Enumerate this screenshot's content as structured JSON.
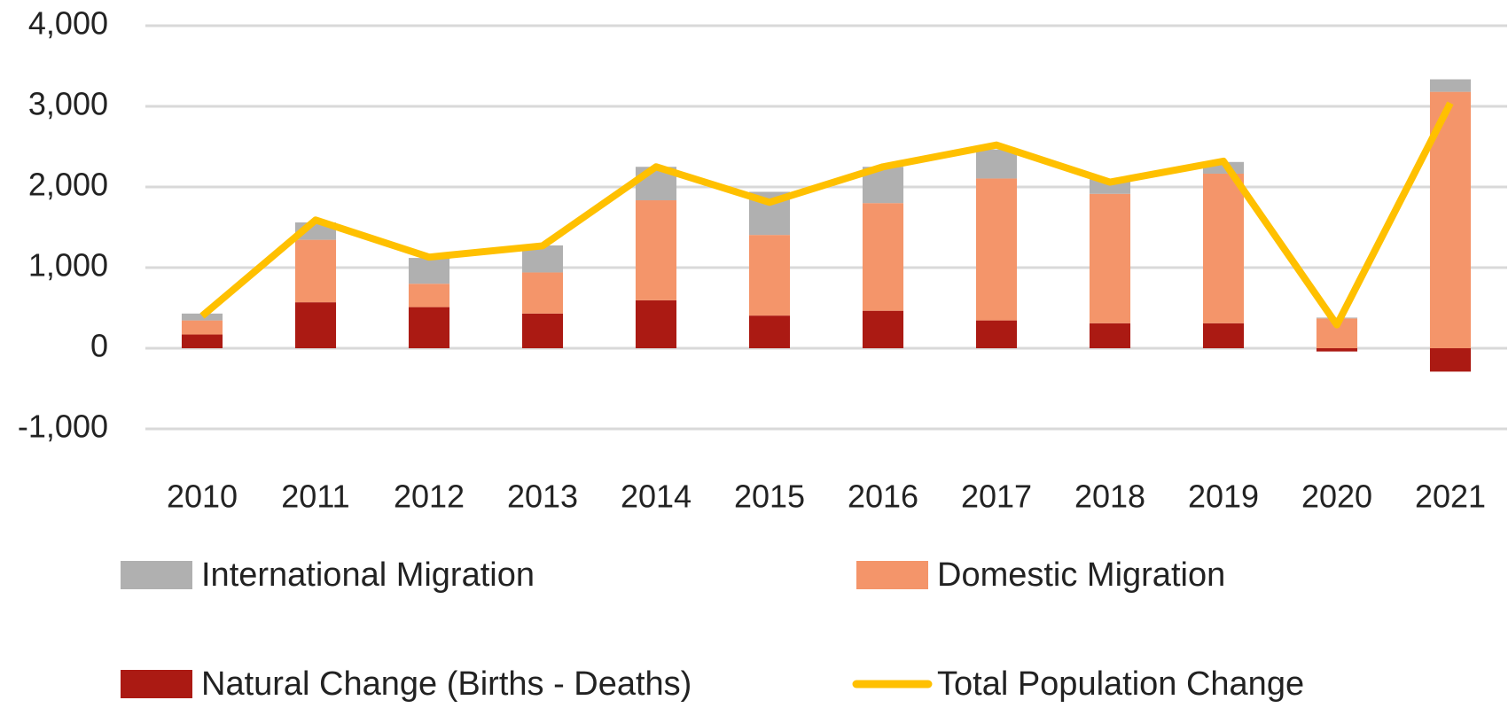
{
  "chart_data": {
    "type": "bar",
    "stacked": true,
    "categories": [
      "2010",
      "2011",
      "2012",
      "2013",
      "2014",
      "2015",
      "2016",
      "2017",
      "2018",
      "2019",
      "2020",
      "2021"
    ],
    "series": [
      {
        "name": "International Migration",
        "color": "#b0b0b0",
        "values": [
          85,
          215,
          320,
          335,
          415,
          535,
          450,
          360,
          180,
          145,
          10,
          155
        ]
      },
      {
        "name": "Domestic Migration",
        "color": "#f4956a",
        "values": [
          175,
          775,
          290,
          510,
          1240,
          1000,
          1335,
          1760,
          1605,
          1855,
          370,
          3180
        ]
      },
      {
        "name": "Natural Change (Births - Deaths)",
        "color": "#ab1a13",
        "values": [
          170,
          570,
          510,
          430,
          595,
          405,
          465,
          345,
          310,
          310,
          -40,
          -290
        ]
      },
      {
        "name": "Total Population Change",
        "color": "#ffc000",
        "type": "line",
        "values": [
          400,
          1590,
          1130,
          1270,
          2250,
          1810,
          2250,
          2520,
          2060,
          2320,
          290,
          3040
        ]
      }
    ],
    "ylim": [
      -1000,
      4000
    ],
    "yticks": [
      {
        "value": -1000,
        "label": "-1,000"
      },
      0,
      {
        "value": 1000,
        "label": "1,000"
      },
      {
        "value": 2000,
        "label": "2,000"
      },
      {
        "value": 3000,
        "label": "3,000"
      },
      {
        "value": 4000,
        "label": "4,000"
      }
    ],
    "grid": true
  }
}
